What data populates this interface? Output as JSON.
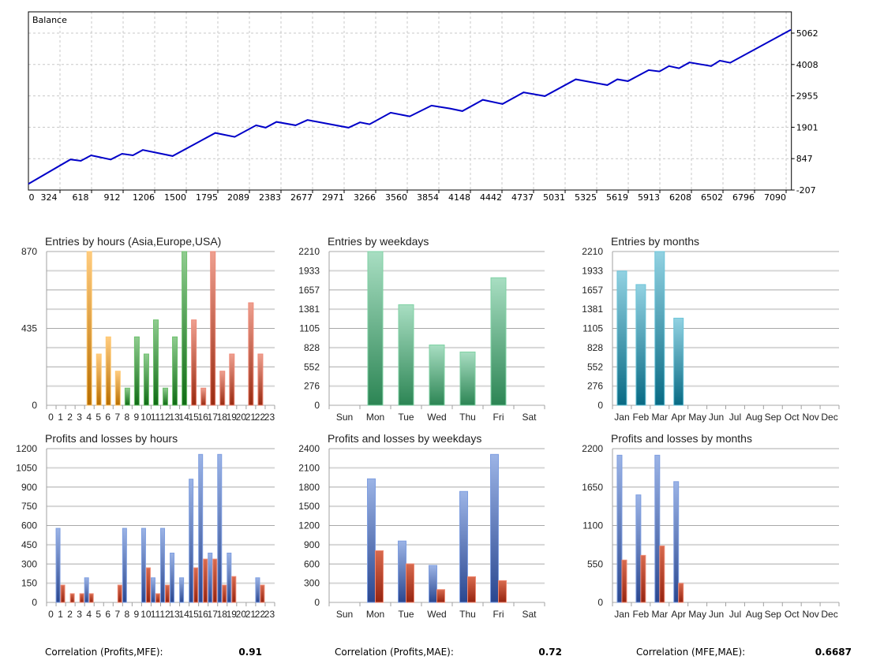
{
  "chart_data": [
    {
      "id": "balance",
      "type": "line",
      "title": "Balance",
      "x_range": [
        0,
        7110
      ],
      "y_range": [
        -207,
        5777
      ],
      "x_tick_step": 294.2,
      "y_ticks": [
        "5062",
        "4008",
        "2955",
        "1901",
        "847",
        "-207"
      ],
      "y_tick_values": [
        5062,
        4008,
        2955,
        1901,
        847,
        -207
      ],
      "x_ticks": [
        "0",
        "324",
        "618",
        "912",
        "1206",
        "1500",
        "1795",
        "2089",
        "2383",
        "2677",
        "2971",
        "3266",
        "3560",
        "3854",
        "4148",
        "4442",
        "4737",
        "5031",
        "5325",
        "5619",
        "5913",
        "6208",
        "6502",
        "6796",
        "7090"
      ],
      "line_color": "#0000c8",
      "points": [
        [
          0,
          0
        ],
        [
          392,
          821
        ],
        [
          488,
          773
        ],
        [
          584,
          959
        ],
        [
          767,
          819
        ],
        [
          873,
          1012
        ],
        [
          974,
          959
        ],
        [
          1066,
          1137
        ],
        [
          1344,
          933
        ],
        [
          1742,
          1709
        ],
        [
          1922,
          1577
        ],
        [
          2122,
          1966
        ],
        [
          2211,
          1887
        ],
        [
          2312,
          2080
        ],
        [
          2490,
          1966
        ],
        [
          2601,
          2144
        ],
        [
          2983,
          1887
        ],
        [
          3090,
          2064
        ],
        [
          3179,
          2000
        ],
        [
          3376,
          2390
        ],
        [
          3553,
          2265
        ],
        [
          3756,
          2629
        ],
        [
          3928,
          2530
        ],
        [
          4044,
          2443
        ],
        [
          4234,
          2822
        ],
        [
          4417,
          2682
        ],
        [
          4614,
          3071
        ],
        [
          4812,
          2947
        ],
        [
          5101,
          3511
        ],
        [
          5394,
          3318
        ],
        [
          5488,
          3511
        ],
        [
          5587,
          3450
        ],
        [
          5780,
          3821
        ],
        [
          5881,
          3776
        ],
        [
          5969,
          3954
        ],
        [
          6063,
          3882
        ],
        [
          6160,
          4078
        ],
        [
          6362,
          3954
        ],
        [
          6443,
          4139
        ],
        [
          6539,
          4067
        ],
        [
          7105,
          5173
        ]
      ]
    },
    {
      "id": "entries-hours",
      "type": "bar",
      "title": "Entries by hours (Asia,Europe,USA)",
      "categories": [
        "0",
        "1",
        "2",
        "3",
        "4",
        "5",
        "6",
        "7",
        "8",
        "9",
        "10",
        "11",
        "12",
        "13",
        "14",
        "15",
        "16",
        "17",
        "18",
        "19",
        "20",
        "21",
        "22",
        "23"
      ],
      "values": [
        0,
        0,
        0,
        0,
        870,
        290,
        387,
        193,
        97,
        387,
        290,
        483,
        97,
        387,
        870,
        483,
        97,
        870,
        193,
        290,
        0,
        580,
        290,
        0
      ],
      "sessions": [
        {
          "name": "Asia",
          "from": 0,
          "to": 7,
          "top": "#ffcc80",
          "bottom": "#b86e00",
          "edge": "#ffc870"
        },
        {
          "name": "Europe",
          "from": 8,
          "to": 14,
          "top": "#90cc90",
          "bottom": "#0f6b14",
          "edge": "#6cc06c"
        },
        {
          "name": "USA",
          "from": 15,
          "to": 23,
          "top": "#eea090",
          "bottom": "#9a2a10",
          "edge": "#ee8a78"
        }
      ],
      "ylim": [
        0,
        870
      ],
      "y_ticks": [
        "870",
        "435",
        "0"
      ],
      "y_tick_values": [
        870,
        435,
        0
      ]
    },
    {
      "id": "entries-weekdays",
      "type": "bar",
      "title": "Entries by weekdays",
      "categories": [
        "Sun",
        "Mon",
        "Tue",
        "Wed",
        "Thu",
        "Fri",
        "Sat"
      ],
      "values": [
        0,
        2210,
        1445,
        867,
        766,
        1833,
        0
      ],
      "colors": {
        "top": "#a8dec2",
        "bottom": "#2c8554",
        "edge": "#7fd2a4"
      },
      "ylim": [
        0,
        2210
      ],
      "y_ticks": [
        "2210",
        "1933",
        "1657",
        "1381",
        "1105",
        "828",
        "552",
        "276",
        "0"
      ],
      "y_tick_values": [
        2210,
        1933,
        1657,
        1381,
        1105,
        828,
        552,
        276,
        0
      ]
    },
    {
      "id": "entries-months",
      "type": "bar",
      "title": "Entries by months",
      "categories": [
        "Jan",
        "Feb",
        "Mar",
        "Apr",
        "May",
        "Jun",
        "Jul",
        "Aug",
        "Sep",
        "Oct",
        "Nov",
        "Dec"
      ],
      "values": [
        1928,
        1735,
        2210,
        1252,
        0,
        0,
        0,
        0,
        0,
        0,
        0,
        0
      ],
      "colors": {
        "top": "#92d2e2",
        "bottom": "#086a84",
        "edge": "#6cc4d8"
      },
      "ylim": [
        0,
        2210
      ],
      "y_ticks": [
        "2210",
        "1933",
        "1657",
        "1381",
        "1105",
        "828",
        "552",
        "276",
        "0"
      ],
      "y_tick_values": [
        2210,
        1933,
        1657,
        1381,
        1105,
        828,
        552,
        276,
        0
      ]
    },
    {
      "id": "pl-hours",
      "type": "bar",
      "title": "Profits and losses by hours",
      "categories": [
        "0",
        "1",
        "2",
        "3",
        "4",
        "5",
        "6",
        "7",
        "8",
        "9",
        "10",
        "11",
        "12",
        "13",
        "14",
        "15",
        "16",
        "17",
        "18",
        "19",
        "20",
        "21",
        "22",
        "23"
      ],
      "series": [
        {
          "name": "Profits",
          "values": [
            0,
            578,
            0,
            0,
            192,
            0,
            0,
            0,
            578,
            0,
            578,
            192,
            578,
            385,
            192,
            962,
            1155,
            385,
            1155,
            385,
            0,
            0,
            192,
            0
          ],
          "top": "#9cb4e6",
          "bottom": "#2a4790",
          "edge": "#7e9ee0"
        },
        {
          "name": "Losses",
          "values": [
            0,
            135,
            68,
            68,
            68,
            0,
            0,
            135,
            0,
            0,
            270,
            68,
            135,
            0,
            0,
            270,
            338,
            338,
            135,
            202,
            0,
            0,
            135,
            0
          ],
          "top": "#d86a4e",
          "bottom": "#962410",
          "edge": "#ee8a74"
        }
      ],
      "ylim": [
        0,
        1200
      ],
      "y_ticks": [
        "1200",
        "1050",
        "900",
        "750",
        "600",
        "450",
        "300",
        "150",
        "0"
      ],
      "y_tick_values": [
        1200,
        1050,
        900,
        750,
        600,
        450,
        300,
        150,
        0
      ]
    },
    {
      "id": "pl-weekdays",
      "type": "bar",
      "title": "Profits and losses by weekdays",
      "categories": [
        "Sun",
        "Mon",
        "Tue",
        "Wed",
        "Thu",
        "Fri",
        "Sat"
      ],
      "series": [
        {
          "name": "Profits",
          "values": [
            0,
            1929,
            958,
            577,
            1732,
            2310,
            0
          ],
          "top": "#9cb4e6",
          "bottom": "#2a4790",
          "edge": "#7e9ee0"
        },
        {
          "name": "Losses",
          "values": [
            0,
            807,
            602,
            200,
            401,
            340,
            0
          ],
          "top": "#d86a4e",
          "bottom": "#962410",
          "edge": "#ee8a74"
        }
      ],
      "ylim": [
        0,
        2400
      ],
      "y_ticks": [
        "2400",
        "2100",
        "1800",
        "1500",
        "1200",
        "900",
        "600",
        "300",
        "0"
      ],
      "y_tick_values": [
        2400,
        2100,
        1800,
        1500,
        1200,
        900,
        600,
        300,
        0
      ]
    },
    {
      "id": "pl-months",
      "type": "bar",
      "title": "Profits and losses by months",
      "categories": [
        "Jan",
        "Feb",
        "Mar",
        "Apr",
        "May",
        "Jun",
        "Jul",
        "Aug",
        "Sep",
        "Oct",
        "Nov",
        "Dec"
      ],
      "series": [
        {
          "name": "Profits",
          "values": [
            2106,
            1538,
            2106,
            1728,
            0,
            0,
            0,
            0,
            0,
            0,
            0,
            0
          ],
          "top": "#9cb4e6",
          "bottom": "#2a4790",
          "edge": "#7e9ee0"
        },
        {
          "name": "Losses",
          "values": [
            606,
            673,
            808,
            273,
            0,
            0,
            0,
            0,
            0,
            0,
            0,
            0
          ],
          "top": "#d86a4e",
          "bottom": "#962410",
          "edge": "#ee8a74"
        }
      ],
      "ylim": [
        0,
        2200
      ],
      "y_ticks": [
        "2200",
        "1650",
        "1100",
        "550",
        "0"
      ],
      "y_tick_values": [
        2200,
        1650,
        1100,
        550,
        0
      ]
    }
  ],
  "correlations": [
    {
      "label": "Correlation (Profits,MFE):",
      "value": "0.91"
    },
    {
      "label": "Correlation (Profits,MAE):",
      "value": "0.72"
    },
    {
      "label": "Correlation (MFE,MAE):",
      "value": "0.6687"
    }
  ]
}
